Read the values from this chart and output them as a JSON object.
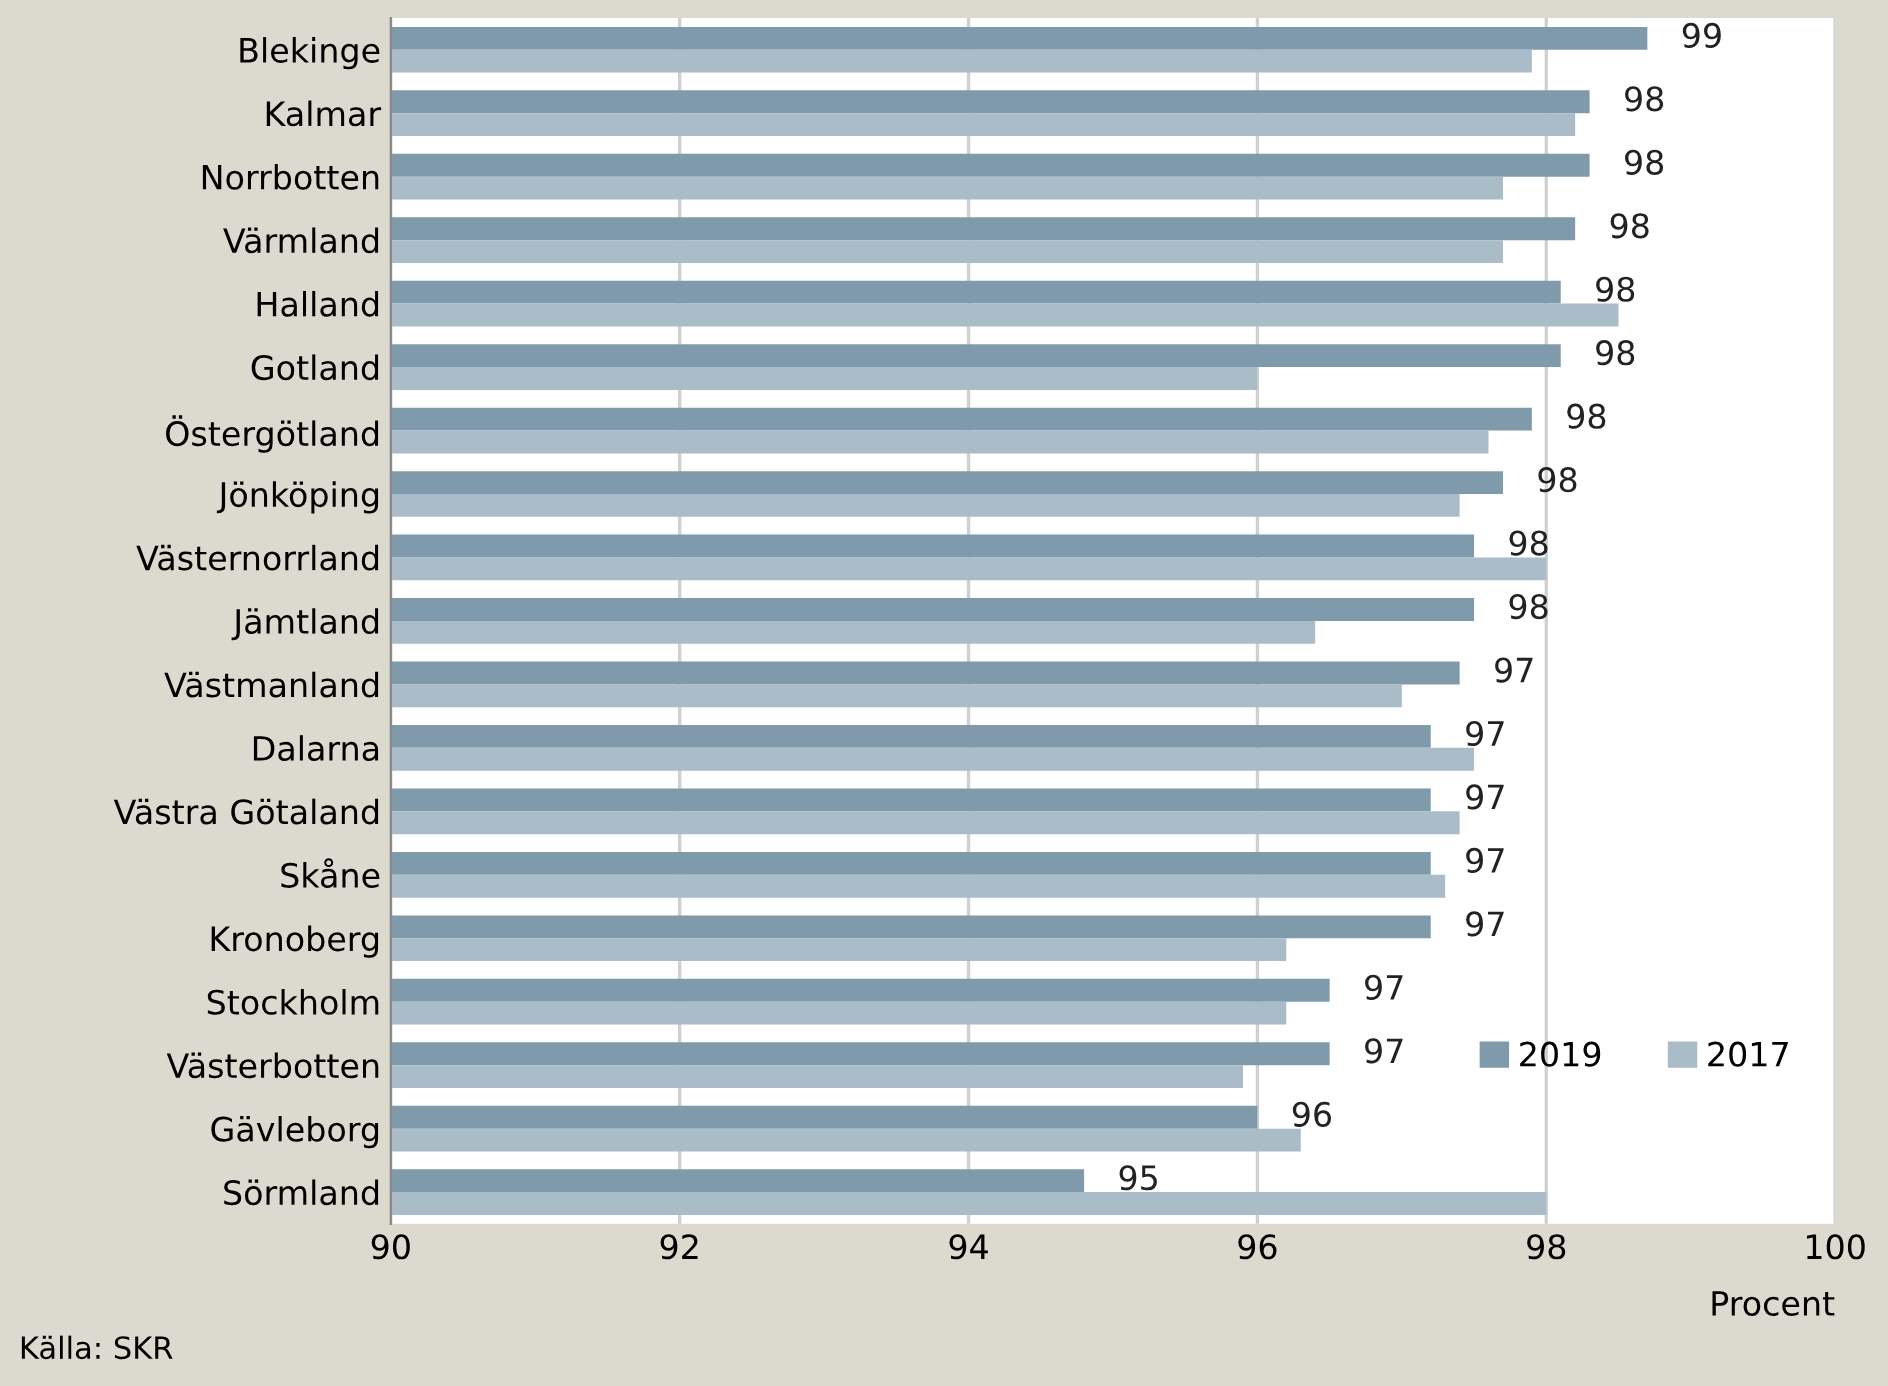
{
  "chart_data": {
    "type": "bar",
    "orientation": "horizontal",
    "xlabel": "Procent",
    "categories": [
      "Blekinge",
      "Kalmar",
      "Norrbotten",
      "Värmland",
      "Halland",
      "Gotland",
      "Östergötland",
      "Jönköping",
      "Västernorrland",
      "Jämtland",
      "Västmanland",
      "Dalarna",
      "Västra Götaland",
      "Skåne",
      "Kronoberg",
      "Stockholm",
      "Västerbotten",
      "Gävleborg",
      "Sörmland"
    ],
    "series": [
      {
        "name": "2019",
        "color": "#7f9aab",
        "values": [
          98.7,
          98.3,
          98.3,
          98.2,
          98.1,
          98.1,
          97.9,
          97.7,
          97.5,
          97.5,
          97.4,
          97.2,
          97.2,
          97.2,
          97.2,
          96.5,
          96.5,
          96.0,
          94.8
        ],
        "value_labels": [
          "99",
          "98",
          "98",
          "98",
          "98",
          "98",
          "98",
          "98",
          "98",
          "98",
          "97",
          "97",
          "97",
          "97",
          "97",
          "97",
          "97",
          "96",
          "95"
        ]
      },
      {
        "name": "2017",
        "color": "#a9bcc8",
        "values": [
          97.9,
          98.2,
          97.7,
          97.7,
          98.5,
          96.0,
          97.6,
          97.4,
          98.0,
          96.4,
          97.0,
          97.5,
          97.4,
          97.3,
          96.2,
          96.2,
          95.9,
          96.3,
          98.0
        ]
      }
    ],
    "xlim": [
      90,
      100
    ],
    "xticks": [
      90,
      92,
      94,
      96,
      98,
      100
    ],
    "grid": "x",
    "legend": "bottom right",
    "annotations": [
      "Källa: SKR"
    ]
  }
}
